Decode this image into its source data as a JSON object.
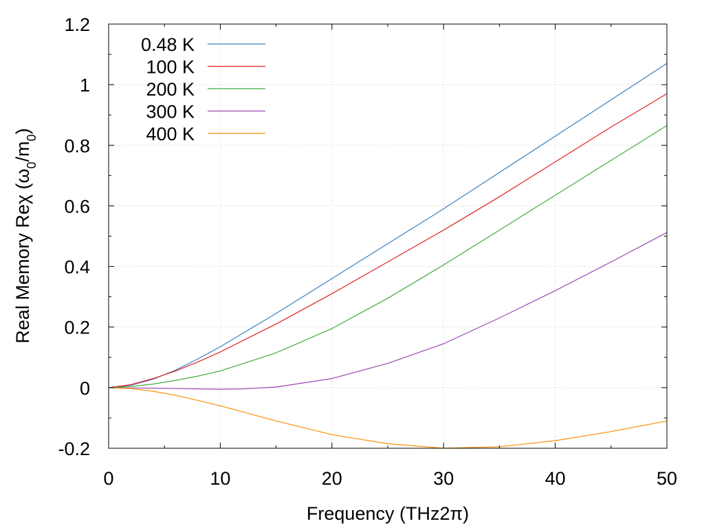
{
  "chart_data": {
    "type": "line",
    "title": "",
    "xlabel": "Frequency (THz2π)",
    "ylabel": "Real Memory Reχ (ω₀/m₀)",
    "ylabel_parts": {
      "main": "Real Memory Reχ (ω",
      "sub1": "0",
      "mid": "/m",
      "sub2": "0",
      "end": ")"
    },
    "xlim": [
      0,
      50
    ],
    "ylim": [
      -0.2,
      1.2
    ],
    "xticks": [
      0,
      10,
      20,
      30,
      40,
      50
    ],
    "xtick_labels": [
      "0",
      "10",
      "20",
      "30",
      "40",
      "50"
    ],
    "yticks": [
      -0.2,
      0,
      0.2,
      0.4,
      0.6,
      0.8,
      1,
      1.2
    ],
    "ytick_labels": [
      "-0.2",
      "0",
      "0.2",
      "0.4",
      "0.6",
      "0.8",
      "1",
      "1.2"
    ],
    "grid": true,
    "legend_position": "top-left",
    "series": [
      {
        "name": "0.48 K",
        "color": "#3a7fbf",
        "x": [
          0,
          2,
          4,
          6,
          8,
          10,
          15,
          20,
          25,
          30,
          35,
          40,
          45,
          50
        ],
        "y": [
          0,
          0.008,
          0.028,
          0.058,
          0.095,
          0.135,
          0.245,
          0.36,
          0.475,
          0.59,
          0.71,
          0.83,
          0.95,
          1.07
        ]
      },
      {
        "name": "100 K",
        "color": "#e02020",
        "x": [
          0,
          2,
          4,
          6,
          8,
          10,
          15,
          20,
          25,
          30,
          35,
          40,
          45,
          50
        ],
        "y": [
          0,
          0.01,
          0.03,
          0.055,
          0.085,
          0.118,
          0.21,
          0.31,
          0.415,
          0.52,
          0.63,
          0.745,
          0.86,
          0.97
        ]
      },
      {
        "name": "200 K",
        "color": "#3fa93f",
        "x": [
          0,
          2,
          4,
          6,
          8,
          10,
          15,
          20,
          25,
          30,
          35,
          40,
          45,
          50
        ],
        "y": [
          0,
          0.004,
          0.012,
          0.024,
          0.038,
          0.055,
          0.115,
          0.195,
          0.295,
          0.405,
          0.52,
          0.635,
          0.75,
          0.865
        ]
      },
      {
        "name": "300 K",
        "color": "#9a48b0",
        "x": [
          0,
          2,
          4,
          6,
          8,
          10,
          12,
          15,
          20,
          25,
          30,
          35,
          40,
          45,
          50
        ],
        "y": [
          0,
          -0.001,
          -0.002,
          -0.003,
          -0.004,
          -0.005,
          -0.004,
          0.002,
          0.03,
          0.08,
          0.145,
          0.23,
          0.32,
          0.415,
          0.512
        ]
      },
      {
        "name": "400 K",
        "color": "#ff8c00",
        "x": [
          0,
          2,
          4,
          6,
          8,
          10,
          12,
          15,
          20,
          25,
          30,
          35,
          40,
          45,
          50
        ],
        "y": [
          0,
          -0.003,
          -0.012,
          -0.025,
          -0.042,
          -0.06,
          -0.08,
          -0.11,
          -0.155,
          -0.185,
          -0.2,
          -0.195,
          -0.175,
          -0.145,
          -0.11
        ]
      }
    ]
  }
}
